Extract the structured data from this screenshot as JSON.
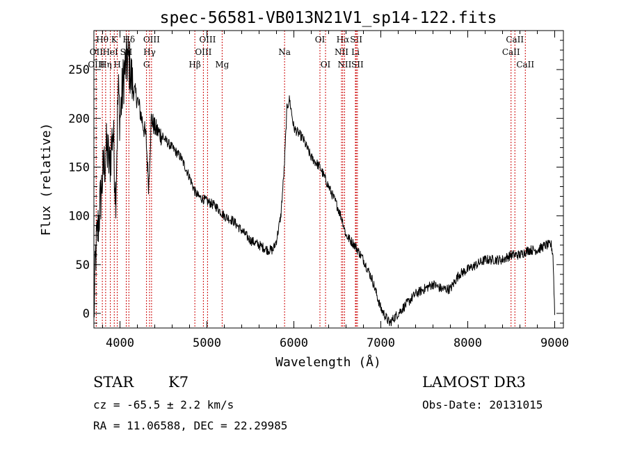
{
  "chart_data": {
    "type": "line",
    "title": "spec-56581-VB013N21V1_sp14-122.fits",
    "xlabel": "Wavelength (Å)",
    "ylabel": "Flux (relative)",
    "xlim": [
      3700,
      9100
    ],
    "ylim": [
      -15,
      290
    ],
    "xticks": [
      4000,
      5000,
      6000,
      7000,
      8000,
      9000
    ],
    "yticks": [
      0,
      50,
      100,
      150,
      200,
      250
    ],
    "xtick_labels": [
      "4000",
      "5000",
      "6000",
      "7000",
      "8000",
      "9000"
    ],
    "ytick_labels": [
      "0",
      "50",
      "100",
      "150",
      "200",
      "250"
    ],
    "line_color": "#000000",
    "marker_color": "#cc0000",
    "spectrum_anchors": {
      "x": [
        3700,
        3720,
        3760,
        3800,
        3850,
        3880,
        3920,
        3950,
        3980,
        4000,
        4050,
        4100,
        4150,
        4200,
        4250,
        4300,
        4330,
        4360,
        4400,
        4500,
        4600,
        4700,
        4800,
        4860,
        4900,
        5000,
        5100,
        5200,
        5300,
        5400,
        5500,
        5600,
        5700,
        5760,
        5800,
        5850,
        5890,
        5920,
        5950,
        6000,
        6100,
        6200,
        6300,
        6400,
        6500,
        6560,
        6600,
        6700,
        6800,
        6900,
        7000,
        7100,
        7200,
        7300,
        7400,
        7500,
        7600,
        7700,
        7800,
        7900,
        8000,
        8100,
        8200,
        8300,
        8400,
        8500,
        8600,
        8700,
        8800,
        8900,
        8960,
        8980,
        9000
      ],
      "y": [
        -5,
        60,
        100,
        140,
        170,
        150,
        190,
        120,
        230,
        200,
        250,
        260,
        230,
        220,
        200,
        180,
        130,
        200,
        190,
        180,
        170,
        160,
        140,
        125,
        120,
        115,
        110,
        100,
        95,
        85,
        75,
        70,
        65,
        65,
        75,
        100,
        150,
        210,
        220,
        190,
        180,
        160,
        150,
        130,
        110,
        95,
        80,
        70,
        55,
        35,
        5,
        -10,
        0,
        10,
        20,
        25,
        30,
        25,
        25,
        40,
        45,
        50,
        55,
        55,
        55,
        60,
        60,
        65,
        65,
        70,
        70,
        60,
        0
      ]
    },
    "lines": [
      {
        "label": "Hθ",
        "wavelength": 3797,
        "row": 0
      },
      {
        "label": "OII",
        "wavelength": 3727,
        "row": 1
      },
      {
        "label": "OIII",
        "wavelength": 3727,
        "row": 2
      },
      {
        "label": "K",
        "wavelength": 3934,
        "row": 0
      },
      {
        "label": "HeI",
        "wavelength": 3889,
        "row": 1
      },
      {
        "label": "Hη",
        "wavelength": 3835,
        "row": 2
      },
      {
        "label": "H",
        "wavelength": 3969,
        "row": 2
      },
      {
        "label": "SII",
        "wavelength": 4072,
        "row": 1
      },
      {
        "label": "Hδ",
        "wavelength": 4102,
        "row": 0
      },
      {
        "label": "OIII",
        "wavelength": 4363,
        "row": 0
      },
      {
        "label": "Hγ",
        "wavelength": 4340,
        "row": 1
      },
      {
        "label": "G",
        "wavelength": 4305,
        "row": 2
      },
      {
        "label": "Hβ",
        "wavelength": 4861,
        "row": 2
      },
      {
        "label": "OIII",
        "wavelength": 4959,
        "row": 1
      },
      {
        "label": "OIII",
        "wavelength": 5007,
        "row": 0
      },
      {
        "label": "Mg",
        "wavelength": 5175,
        "row": 2
      },
      {
        "label": "Na",
        "wavelength": 5893,
        "row": 1
      },
      {
        "label": "OI",
        "wavelength": 6300,
        "row": 0
      },
      {
        "label": "OI",
        "wavelength": 6364,
        "row": 2
      },
      {
        "label": "Hα",
        "wavelength": 6563,
        "row": 0
      },
      {
        "label": "NII",
        "wavelength": 6548,
        "row": 1
      },
      {
        "label": "NII",
        "wavelength": 6583,
        "row": 2
      },
      {
        "label": "SII",
        "wavelength": 6717,
        "row": 0
      },
      {
        "label": "Li",
        "wavelength": 6708,
        "row": 1
      },
      {
        "label": "SII",
        "wavelength": 6731,
        "row": 2
      },
      {
        "label": "CaII",
        "wavelength": 8542,
        "row": 0
      },
      {
        "label": "CaII",
        "wavelength": 8498,
        "row": 1
      },
      {
        "label": "CaII",
        "wavelength": 8662,
        "row": 2
      }
    ]
  },
  "footer": {
    "object_class": "STAR",
    "subclass": "K7",
    "survey": "LAMOST DR3",
    "redshift": "cz = -65.5 ± 2.2 km/s",
    "obs_date": "Obs-Date: 20131015",
    "coords": "RA =  11.06588, DEC =  22.29985"
  }
}
